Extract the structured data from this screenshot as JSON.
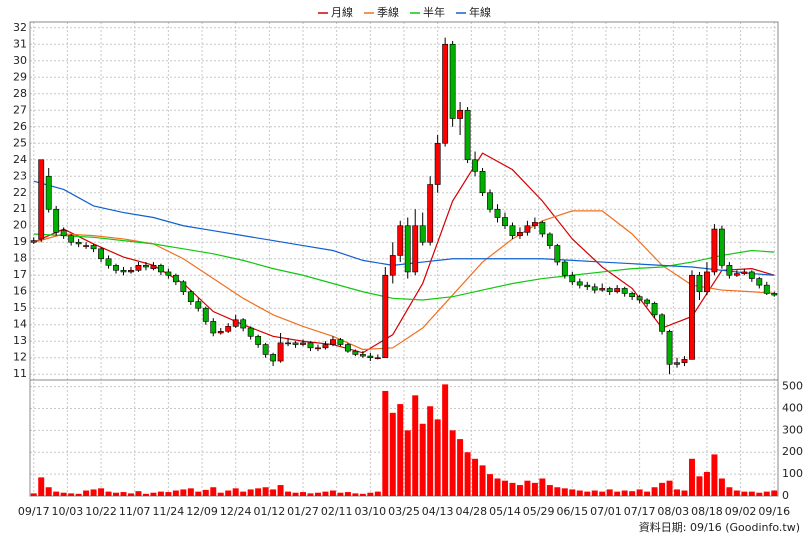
{
  "chart_data": {
    "type": "candlestick",
    "legend": [
      {
        "name": "月線",
        "color": "#d40000"
      },
      {
        "name": "季線",
        "color": "#f07020"
      },
      {
        "name": "半年",
        "color": "#10c810"
      },
      {
        "name": "年線",
        "color": "#1060d0"
      }
    ],
    "up_color": "#ff0000",
    "down_color": "#00b000",
    "volume_color": "#ff0000",
    "footer": "資料日期: 09/16 (Goodinfo.tw)",
    "ylim": [
      10.65,
      32.35
    ],
    "yticks": [
      11,
      12,
      13,
      14,
      15,
      16,
      17,
      18,
      19,
      20,
      21,
      22,
      23,
      24,
      25,
      26,
      27,
      28,
      29,
      30,
      31,
      32
    ],
    "y2lim": [
      0,
      530
    ],
    "y2ticks": [
      0,
      100,
      200,
      300,
      400,
      500
    ],
    "xlim": [
      -0.5,
      99.5
    ],
    "xticks": [
      {
        "value": 0,
        "label": "09/17"
      },
      {
        "value": 4.5,
        "label": "10/03"
      },
      {
        "value": 9,
        "label": "10/22"
      },
      {
        "value": 13.5,
        "label": "11/07"
      },
      {
        "value": 18,
        "label": "11/24"
      },
      {
        "value": 22.5,
        "label": "12/09"
      },
      {
        "value": 27,
        "label": "12/24"
      },
      {
        "value": 31.5,
        "label": "01/12"
      },
      {
        "value": 36,
        "label": "01/27"
      },
      {
        "value": 40.5,
        "label": "02/11"
      },
      {
        "value": 45,
        "label": "03/10"
      },
      {
        "value": 49.5,
        "label": "03/25"
      },
      {
        "value": 54,
        "label": "04/13"
      },
      {
        "value": 58.5,
        "label": "04/28"
      },
      {
        "value": 63,
        "label": "05/14"
      },
      {
        "value": 67.5,
        "label": "05/29"
      },
      {
        "value": 72,
        "label": "06/15"
      },
      {
        "value": 76.5,
        "label": "07/01"
      },
      {
        "value": 81,
        "label": "07/17"
      },
      {
        "value": 85.5,
        "label": "08/03"
      },
      {
        "value": 90,
        "label": "08/18"
      },
      {
        "value": 94.5,
        "label": "09/02"
      },
      {
        "value": 99,
        "label": "09/16"
      }
    ],
    "grid": true,
    "ohlc": [
      [
        19.0,
        19.3,
        18.9,
        19.1
      ],
      [
        19.2,
        24.0,
        19.0,
        24.0
      ],
      [
        23.0,
        23.5,
        20.8,
        21.0
      ],
      [
        21.0,
        21.2,
        19.4,
        19.6
      ],
      [
        19.7,
        19.9,
        19.2,
        19.4
      ],
      [
        19.4,
        19.5,
        18.8,
        19.0
      ],
      [
        19.0,
        19.2,
        18.7,
        18.9
      ],
      [
        18.8,
        19.0,
        18.6,
        18.8
      ],
      [
        18.8,
        18.9,
        18.4,
        18.6
      ],
      [
        18.6,
        18.7,
        17.8,
        18.0
      ],
      [
        18.0,
        18.2,
        17.4,
        17.6
      ],
      [
        17.6,
        17.7,
        17.1,
        17.3
      ],
      [
        17.3,
        17.5,
        17.0,
        17.2
      ],
      [
        17.2,
        17.5,
        17.1,
        17.3
      ],
      [
        17.3,
        17.8,
        17.2,
        17.6
      ],
      [
        17.6,
        17.8,
        17.3,
        17.5
      ],
      [
        17.4,
        17.8,
        17.3,
        17.6
      ],
      [
        17.6,
        17.7,
        17.0,
        17.2
      ],
      [
        17.2,
        17.4,
        16.8,
        17.0
      ],
      [
        17.0,
        17.1,
        16.4,
        16.6
      ],
      [
        16.6,
        16.7,
        15.8,
        16.0
      ],
      [
        16.0,
        16.1,
        15.2,
        15.4
      ],
      [
        15.4,
        15.6,
        14.8,
        15.0
      ],
      [
        15.0,
        15.1,
        14.0,
        14.2
      ],
      [
        14.2,
        14.4,
        13.3,
        13.5
      ],
      [
        13.5,
        13.8,
        13.4,
        13.6
      ],
      [
        13.6,
        14.1,
        13.5,
        13.9
      ],
      [
        13.9,
        14.6,
        13.8,
        14.3
      ],
      [
        14.3,
        14.4,
        13.6,
        13.8
      ],
      [
        13.8,
        13.9,
        13.1,
        13.3
      ],
      [
        13.3,
        13.4,
        12.6,
        12.8
      ],
      [
        12.8,
        12.9,
        12.0,
        12.2
      ],
      [
        12.2,
        12.3,
        11.5,
        11.8
      ],
      [
        11.8,
        13.5,
        11.7,
        12.9
      ],
      [
        12.9,
        13.2,
        12.7,
        12.9
      ],
      [
        12.9,
        13.0,
        12.6,
        12.8
      ],
      [
        12.8,
        13.1,
        12.7,
        12.9
      ],
      [
        12.9,
        13.0,
        12.4,
        12.6
      ],
      [
        12.6,
        12.8,
        12.4,
        12.6
      ],
      [
        12.6,
        13.0,
        12.5,
        12.8
      ],
      [
        12.8,
        13.3,
        12.7,
        13.1
      ],
      [
        13.1,
        13.2,
        12.7,
        12.8
      ],
      [
        12.8,
        12.9,
        12.3,
        12.4
      ],
      [
        12.4,
        12.5,
        12.1,
        12.2
      ],
      [
        12.2,
        12.4,
        12.0,
        12.1
      ],
      [
        12.1,
        12.3,
        11.8,
        12.0
      ],
      [
        12.0,
        12.2,
        11.9,
        12.0
      ],
      [
        12.0,
        17.5,
        12.0,
        17.0
      ],
      [
        17.0,
        19.0,
        16.5,
        18.2
      ],
      [
        18.2,
        20.3,
        17.8,
        20.0
      ],
      [
        20.0,
        20.5,
        16.8,
        17.2
      ],
      [
        17.2,
        21.0,
        17.0,
        20.0
      ],
      [
        20.0,
        20.8,
        18.8,
        19.0
      ],
      [
        19.0,
        23.0,
        18.8,
        22.5
      ],
      [
        22.5,
        25.5,
        22.0,
        25.0
      ],
      [
        25.0,
        31.4,
        24.8,
        31.0
      ],
      [
        31.0,
        31.2,
        26.0,
        26.5
      ],
      [
        26.5,
        27.5,
        25.5,
        27.0
      ],
      [
        27.0,
        27.2,
        23.8,
        24.0
      ],
      [
        24.0,
        24.5,
        23.0,
        23.3
      ],
      [
        23.3,
        23.5,
        21.8,
        22.0
      ],
      [
        22.0,
        22.2,
        20.8,
        21.0
      ],
      [
        21.0,
        21.3,
        20.2,
        20.5
      ],
      [
        20.5,
        20.8,
        19.8,
        20.0
      ],
      [
        20.0,
        20.2,
        19.2,
        19.4
      ],
      [
        19.4,
        19.9,
        19.2,
        19.6
      ],
      [
        19.6,
        20.3,
        19.4,
        20.0
      ],
      [
        20.0,
        20.5,
        19.8,
        20.2
      ],
      [
        20.2,
        20.3,
        19.3,
        19.5
      ],
      [
        19.5,
        19.6,
        18.6,
        18.8
      ],
      [
        18.8,
        18.9,
        17.6,
        17.8
      ],
      [
        17.8,
        17.9,
        16.8,
        17.0
      ],
      [
        17.0,
        17.2,
        16.4,
        16.6
      ],
      [
        16.6,
        16.8,
        16.2,
        16.4
      ],
      [
        16.4,
        16.6,
        16.1,
        16.3
      ],
      [
        16.3,
        16.5,
        15.9,
        16.1
      ],
      [
        16.1,
        16.5,
        16.0,
        16.2
      ],
      [
        16.2,
        16.3,
        15.8,
        16.0
      ],
      [
        16.0,
        16.4,
        15.9,
        16.2
      ],
      [
        16.2,
        16.3,
        15.7,
        15.9
      ],
      [
        15.9,
        16.0,
        15.5,
        15.7
      ],
      [
        15.7,
        15.8,
        15.3,
        15.5
      ],
      [
        15.5,
        15.6,
        15.1,
        15.3
      ],
      [
        15.3,
        15.4,
        14.4,
        14.6
      ],
      [
        14.6,
        14.7,
        13.4,
        13.6
      ],
      [
        13.6,
        13.7,
        11.0,
        11.6
      ],
      [
        11.6,
        12.0,
        11.4,
        11.7
      ],
      [
        11.7,
        12.1,
        11.5,
        11.9
      ],
      [
        11.9,
        17.3,
        11.9,
        17.0
      ],
      [
        17.0,
        17.2,
        15.5,
        16.0
      ],
      [
        16.0,
        17.8,
        15.8,
        17.2
      ],
      [
        17.2,
        20.1,
        17.0,
        19.8
      ],
      [
        19.8,
        20.0,
        17.4,
        17.6
      ],
      [
        17.6,
        17.8,
        16.8,
        17.0
      ],
      [
        17.0,
        17.3,
        16.9,
        17.1
      ],
      [
        17.1,
        17.4,
        17.0,
        17.2
      ],
      [
        17.2,
        17.3,
        16.6,
        16.8
      ],
      [
        16.8,
        16.9,
        16.2,
        16.4
      ],
      [
        16.4,
        16.6,
        15.8,
        15.9
      ],
      [
        15.9,
        16.0,
        15.7,
        15.8
      ]
    ],
    "volume": [
      12,
      85,
      40,
      20,
      15,
      12,
      10,
      25,
      30,
      35,
      20,
      15,
      18,
      12,
      22,
      10,
      15,
      20,
      18,
      25,
      30,
      35,
      20,
      28,
      40,
      15,
      25,
      35,
      20,
      30,
      35,
      40,
      30,
      50,
      20,
      15,
      18,
      12,
      15,
      20,
      25,
      15,
      18,
      12,
      10,
      15,
      20,
      480,
      380,
      420,
      300,
      460,
      330,
      410,
      350,
      510,
      300,
      260,
      200,
      170,
      140,
      100,
      80,
      70,
      60,
      50,
      70,
      60,
      80,
      50,
      40,
      35,
      30,
      25,
      20,
      25,
      20,
      30,
      20,
      25,
      22,
      30,
      20,
      40,
      60,
      70,
      30,
      25,
      170,
      90,
      110,
      190,
      80,
      40,
      25,
      20,
      20,
      15,
      20,
      25
    ],
    "ma_x": [
      0,
      4,
      8,
      12,
      16,
      20,
      24,
      28,
      32,
      36,
      40,
      44,
      48,
      52,
      56,
      60,
      64,
      68,
      72,
      76,
      80,
      84,
      88,
      92,
      96,
      99
    ],
    "ma_series": [
      {
        "values": [
          19.0,
          19.8,
          18.9,
          18.1,
          17.6,
          16.5,
          14.8,
          14.0,
          13.3,
          13.0,
          12.8,
          12.3,
          13.4,
          16.5,
          21.5,
          24.4,
          23.4,
          21.5,
          19.2,
          17.5,
          16.2,
          13.8,
          14.5,
          17.3,
          17.4,
          17.0
        ]
      },
      {
        "values": [
          19.0,
          19.5,
          19.4,
          19.2,
          18.9,
          18.0,
          16.8,
          15.6,
          14.6,
          13.9,
          13.3,
          12.5,
          12.6,
          13.8,
          15.8,
          17.8,
          19.2,
          20.3,
          20.9,
          20.9,
          19.5,
          17.6,
          16.4,
          16.1,
          16.0,
          15.9
        ]
      },
      {
        "values": [
          19.5,
          19.4,
          19.3,
          19.1,
          18.9,
          18.6,
          18.3,
          17.9,
          17.4,
          17.0,
          16.5,
          16.0,
          15.6,
          15.5,
          15.7,
          16.1,
          16.5,
          16.8,
          17.0,
          17.2,
          17.4,
          17.5,
          17.8,
          18.2,
          18.5,
          18.4
        ]
      },
      {
        "values": [
          22.7,
          22.2,
          21.2,
          20.8,
          20.5,
          20.0,
          19.7,
          19.4,
          19.1,
          18.8,
          18.5,
          17.9,
          17.6,
          17.8,
          18.0,
          18.0,
          18.0,
          18.0,
          17.9,
          17.8,
          17.7,
          17.6,
          17.5,
          17.3,
          17.1,
          17.0
        ]
      }
    ]
  }
}
